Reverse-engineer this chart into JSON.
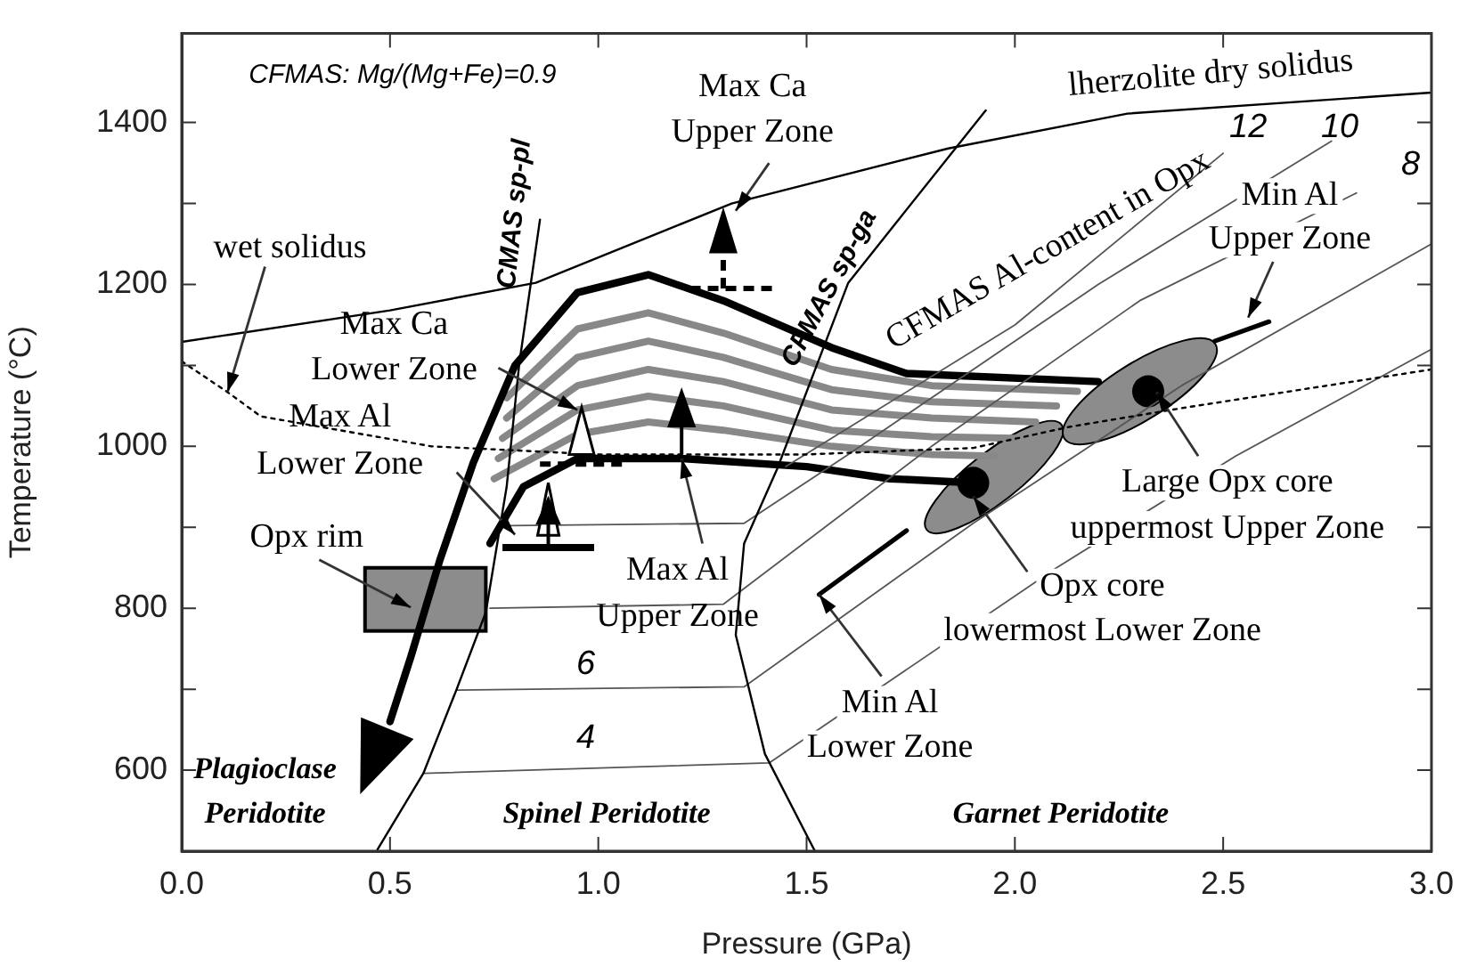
{
  "chart_data": {
    "type": "line",
    "xlabel": "Pressure (GPa)",
    "ylabel": "Temperature (°C)",
    "xlim": [
      0,
      3
    ],
    "ylim": [
      500,
      1510
    ],
    "xticks": [
      {
        "value": 0,
        "label": "0.0"
      },
      0.5,
      {
        "value": 1,
        "label": "1.0"
      },
      1.5,
      {
        "value": 2,
        "label": "2.0"
      },
      2.5,
      {
        "value": 3,
        "label": "3.0"
      }
    ],
    "yticks": [
      600,
      {
        "value": 700,
        "label": null
      },
      800,
      {
        "value": 900,
        "label": null
      },
      1000,
      {
        "value": 1100,
        "label": null
      },
      1200,
      {
        "value": 1300,
        "label": null
      },
      1400
    ],
    "series": [
      {
        "name": "lherzolite dry solidus",
        "color": "#000000",
        "x": [
          0,
          0.5,
          0.85,
          1.32,
          1.84,
          2.27,
          3.0
        ],
        "values": [
          1129,
          1168,
          1202,
          1300,
          1368,
          1411,
          1437
        ]
      },
      {
        "color": "#000000",
        "line_style": "dotted",
        "x": [
          0,
          0.11,
          0.19,
          0.6,
          1.0,
          1.5,
          1.9,
          2.13,
          2.41,
          3.0
        ],
        "values": [
          1105,
          1067,
          1037,
          1000,
          990,
          990,
          998,
          1024,
          1048,
          1095
        ]
      },
      {
        "name": "CMAS sp-pl",
        "color": "#000000",
        "x": [
          0.47,
          0.58,
          0.66,
          0.73,
          0.78,
          0.81,
          0.86
        ],
        "values": [
          502,
          596,
          700,
          795,
          950,
          1101,
          1280
        ]
      },
      {
        "name": "CFMAS sp-ga",
        "color": "#000000",
        "x": [
          1.52,
          1.4,
          1.33,
          1.35,
          1.43,
          1.6,
          1.93
        ],
        "values": [
          500,
          620,
          767,
          880,
          973,
          1202,
          1415
        ]
      },
      {
        "name": "4",
        "color": "#555555",
        "x": [
          0.58,
          1.41,
          2.1,
          2.53,
          3.0
        ],
        "values": [
          596,
          609,
          850,
          988,
          1120
        ]
      },
      {
        "name": "6",
        "color": "#555555",
        "x": [
          0.66,
          1.35,
          1.9,
          2.4,
          3.0
        ],
        "values": [
          699,
          703,
          905,
          1075,
          1250
        ]
      },
      {
        "name": "8",
        "color": "#555555",
        "x": [
          0.74,
          1.3,
          1.8,
          2.3,
          2.82
        ],
        "values": [
          800,
          805,
          1000,
          1180,
          1313
        ]
      },
      {
        "name": "10",
        "color": "#555555",
        "x": [
          0.79,
          1.35,
          1.6,
          2.2,
          2.76
        ],
        "values": [
          902,
          905,
          990,
          1200,
          1377
        ]
      },
      {
        "name": "12",
        "color": "#555555",
        "x": [
          1.45,
          2.0,
          2.5
        ],
        "values": [
          975,
          1150,
          1362
        ]
      },
      {
        "color": "#000000",
        "x": [
          2.2,
          1.74,
          1.56,
          1.3,
          1.12,
          0.95,
          0.8,
          0.7,
          0.62,
          0.55,
          0.5
        ],
        "values": [
          1080,
          1090,
          1122,
          1180,
          1212,
          1190,
          1100,
          980,
          860,
          740,
          660
        ]
      },
      {
        "color": "#888888",
        "x": [
          0.78,
          0.95,
          1.12,
          1.3,
          1.56,
          1.8,
          2.15
        ],
        "values": [
          1060,
          1145,
          1165,
          1140,
          1095,
          1075,
          1068
        ]
      },
      {
        "color": "#888888",
        "x": [
          0.78,
          0.95,
          1.12,
          1.3,
          1.56,
          1.8,
          2.1
        ],
        "values": [
          1035,
          1110,
          1130,
          1110,
          1070,
          1055,
          1050
        ]
      },
      {
        "color": "#888888",
        "x": [
          0.77,
          0.95,
          1.12,
          1.3,
          1.56,
          1.8,
          2.05
        ],
        "values": [
          1010,
          1075,
          1095,
          1080,
          1045,
          1035,
          1030
        ]
      },
      {
        "color": "#888888",
        "x": [
          0.76,
          0.95,
          1.12,
          1.3,
          1.56,
          1.8,
          2.0
        ],
        "values": [
          985,
          1045,
          1062,
          1050,
          1020,
          1012,
          1010
        ]
      },
      {
        "color": "#888888",
        "x": [
          0.75,
          0.95,
          1.12,
          1.3,
          1.56,
          1.8,
          1.95
        ],
        "values": [
          960,
          1015,
          1030,
          1020,
          1000,
          990,
          988
        ]
      },
      {
        "color": "#000000",
        "x": [
          0.74,
          0.82,
          0.95,
          1.2,
          1.5,
          1.7,
          1.9
        ],
        "values": [
          880,
          950,
          985,
          985,
          975,
          960,
          955
        ]
      },
      {
        "color": "#000000",
        "x": [
          2.48,
          2.61
        ],
        "values": [
          1130,
          1154
        ]
      },
      {
        "color": "#000000",
        "x": [
          1.53,
          1.74
        ],
        "values": [
          817,
          896
        ]
      }
    ],
    "annotations": [
      "CFMAS: Mg/(Mg+Fe)=0.9",
      {
        "text": "wet solidus",
        "x": 0.11,
        "y": 1067
      },
      {
        "text": "Max Ca\nLower Zone",
        "x": 0.95,
        "y": 1045
      },
      {
        "text": "Max Al\nLower Zone",
        "x": 0.8,
        "y": 891
      },
      {
        "text": "Max Ca\nUpper Zone",
        "x": 1.33,
        "y": 1291
      },
      "CFMAS Al-content in Opx",
      {
        "text": "Min Al\nUpper Zone",
        "x": 2.56,
        "y": 1159
      },
      {
        "text": "Large Opx core\nuppermost Upper Zone",
        "x": 2.34,
        "y": 1067
      },
      {
        "text": "Opx core\nlowermost Lower Zone",
        "x": 1.9,
        "y": 938
      },
      {
        "text": "Max Al\nUpper Zone",
        "x": 1.2,
        "y": 985
      },
      {
        "text": "Min Al\nLower Zone",
        "x": 1.53,
        "y": 817
      },
      "Opx rim",
      "Plagioclase\nPeridotite",
      "Spinel Peridotite",
      "Garnet Peridotite"
    ]
  }
}
